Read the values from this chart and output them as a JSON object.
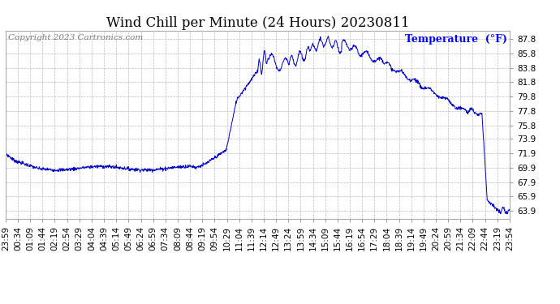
{
  "title": "Wind Chill per Minute (24 Hours) 20230811",
  "copyright": "Copyright 2023 Cartronics.com",
  "ylabel": "Temperature  (°F)",
  "line_color": "#0000cc",
  "background_color": "#ffffff",
  "plot_bg_color": "#ffffff",
  "grid_color": "#bbbbbb",
  "yticks": [
    63.9,
    65.9,
    67.9,
    69.9,
    71.9,
    73.9,
    75.8,
    77.8,
    79.8,
    81.8,
    83.8,
    85.8,
    87.8
  ],
  "ylim": [
    62.8,
    89.0
  ],
  "xtick_labels": [
    "23:59",
    "00:34",
    "01:09",
    "01:44",
    "02:19",
    "02:54",
    "03:29",
    "04:04",
    "04:39",
    "05:14",
    "05:49",
    "06:24",
    "06:59",
    "07:34",
    "08:09",
    "08:44",
    "09:19",
    "09:54",
    "10:29",
    "11:04",
    "11:39",
    "12:14",
    "12:49",
    "13:24",
    "13:59",
    "14:34",
    "15:09",
    "15:44",
    "16:19",
    "16:54",
    "17:29",
    "18:04",
    "18:39",
    "19:14",
    "19:49",
    "20:24",
    "20:59",
    "21:34",
    "22:09",
    "22:44",
    "23:19",
    "23:54"
  ],
  "title_fontsize": 12,
  "axis_fontsize": 7.5,
  "ylabel_fontsize": 9,
  "copyright_fontsize": 7.5
}
